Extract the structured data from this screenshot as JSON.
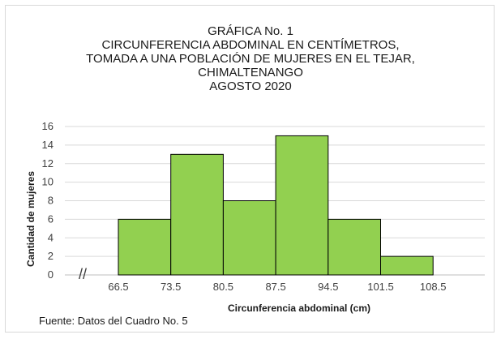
{
  "chart_data": {
    "type": "bar",
    "title_lines": [
      "GRÁFICA No. 1",
      "CIRCUNFERENCIA ABDOMINAL  EN CENTÍMETROS,",
      "TOMADA A UNA POBLACIÓN DE MUJERES EN EL TEJAR,",
      "CHIMALTENANGO",
      "AGOSTO 2020"
    ],
    "xlabel": "Circunferencia abdominal (cm)",
    "ylabel": "Cantidad de mujeres",
    "categories": [
      "66.5-73.5",
      "73.5-80.5",
      "80.5-87.5",
      "87.5-94.5",
      "94.5-101.5",
      "101.5-108.5"
    ],
    "x_ticks": [
      "66.5",
      "73.5",
      "80.5",
      "87.5",
      "94.5",
      "101.5",
      "108.5"
    ],
    "values": [
      6,
      13,
      8,
      15,
      6,
      2
    ],
    "ylim": [
      0,
      16
    ],
    "y_ticks": [
      0,
      2,
      4,
      6,
      8,
      10,
      12,
      14,
      16
    ],
    "grid": true,
    "axis_break_symbol": "//",
    "bar_color": "#92d050",
    "bar_edge_color": "#000000"
  },
  "footer": {
    "source": "Fuente: Datos del Cuadro No. 5"
  }
}
